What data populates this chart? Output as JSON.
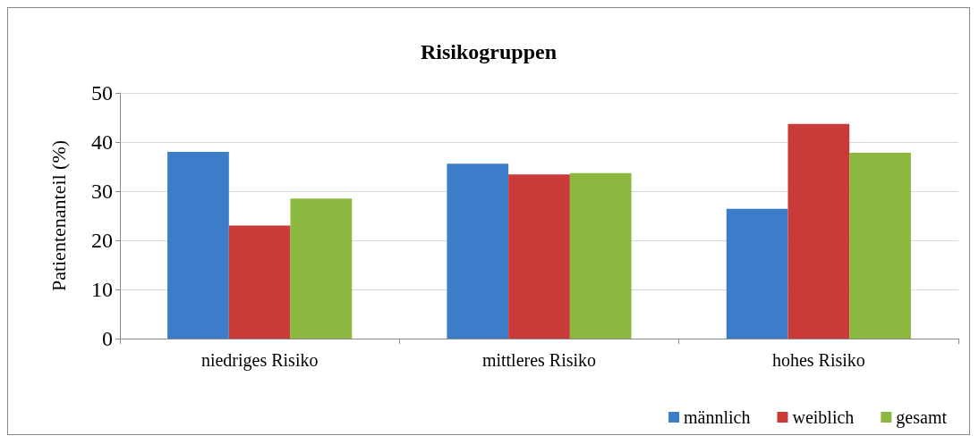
{
  "chart_data": {
    "type": "bar",
    "title": "Risikogruppen",
    "ylabel": "Patientenanteil (%)",
    "categories": [
      "niedriges Risiko",
      "mittleres Risiko",
      "hohes Risiko"
    ],
    "series": [
      {
        "name": "männlich",
        "color": "#3d7cc9",
        "values": [
          38.0,
          35.6,
          26.4
        ]
      },
      {
        "name": "weiblich",
        "color": "#c93a38",
        "values": [
          23.0,
          33.4,
          43.7
        ]
      },
      {
        "name": "gesamt",
        "color": "#8db83f",
        "values": [
          28.5,
          33.7,
          37.8
        ]
      }
    ],
    "ylim": [
      0,
      50
    ],
    "yticks": [
      0,
      10,
      20,
      30,
      40,
      50
    ],
    "grid": "y",
    "legend": "bottom right"
  }
}
